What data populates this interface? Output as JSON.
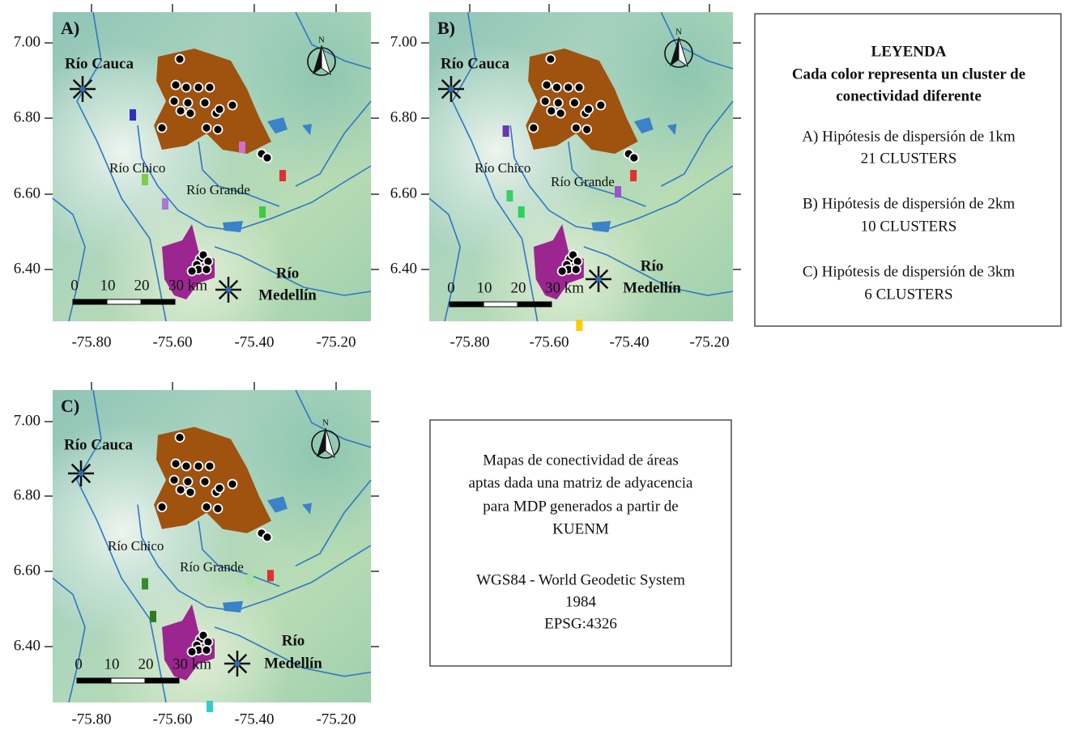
{
  "panels": [
    {
      "label": "A)"
    },
    {
      "label": "B)"
    },
    {
      "label": "C)"
    }
  ],
  "axes": {
    "lat_labels": [
      "7.00",
      "6.80",
      "6.60",
      "6.40"
    ],
    "lon_labels": [
      "-75.80",
      "-75.60",
      "-75.40",
      "-75.20"
    ]
  },
  "north": "N",
  "scale_labels": [
    "0",
    "10",
    "20",
    "30 km"
  ],
  "rivers": {
    "cauca": "Río Cauca",
    "chico": "Río Chico",
    "grande": "Río Grande",
    "medellin": [
      "Río",
      "Medellín"
    ]
  },
  "legend": {
    "title": "LEYENDA",
    "subtitle": [
      "Cada color representa un cluster de",
      "conectividad diferente"
    ],
    "items": [
      [
        "A) Hipótesis de dispersión de 1km",
        "21 CLUSTERS"
      ],
      [
        "B) Hipótesis de dispersión de 2km",
        "10 CLUSTERS"
      ],
      [
        "C) Hipótesis de dispersión de 3km",
        "6 CLUSTERS"
      ]
    ]
  },
  "description": {
    "lines": [
      "Mapas de conectividad de áreas",
      "aptas dada una matriz de adyacencia",
      "para MDP generados a partir de",
      "KUENM"
    ],
    "crs": [
      "WGS84 - World Geodetic System",
      "1984",
      "EPSG:4326"
    ]
  }
}
